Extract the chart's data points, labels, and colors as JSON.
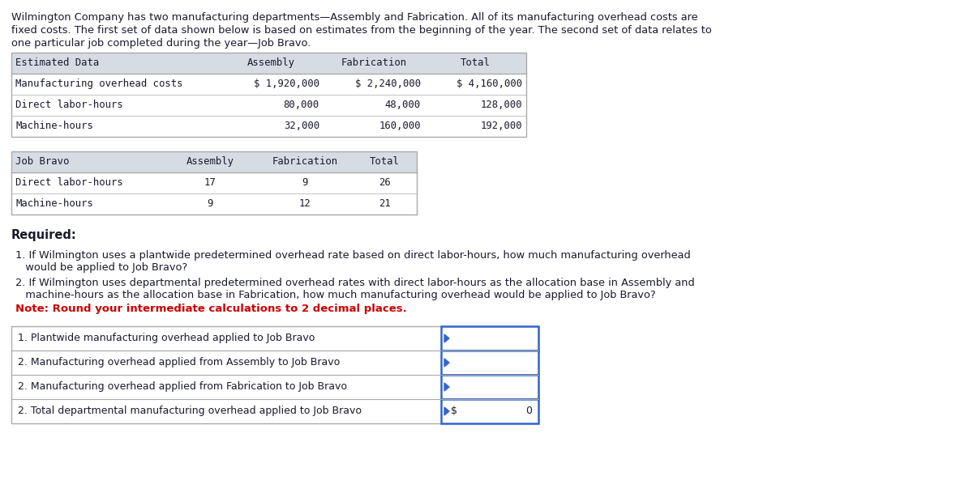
{
  "bg_color": "#ffffff",
  "intro_lines": [
    "Wilmington Company has two manufacturing departments—Assembly and Fabrication. All of its manufacturing overhead costs are",
    "fixed costs. The first set of data shown below is based on estimates from the beginning of the year. The second set of data relates to",
    "one particular job completed during the year—Job Bravo."
  ],
  "est_header": [
    "Estimated Data",
    "Assembly",
    "Fabrication",
    "Total"
  ],
  "est_rows": [
    [
      "Manufacturing overhead costs",
      "$ 1,920,000",
      "$ 2,240,000",
      "$ 4,160,000"
    ],
    [
      "Direct labor-hours",
      "80,000",
      "48,000",
      "128,000"
    ],
    [
      "Machine-hours",
      "32,000",
      "160,000",
      "192,000"
    ]
  ],
  "job_header": [
    "Job Bravo",
    "Assembly",
    "Fabrication",
    "Total"
  ],
  "job_rows": [
    [
      "Direct labor-hours",
      "17",
      "9",
      "26"
    ],
    [
      "Machine-hours",
      "9",
      "12",
      "21"
    ]
  ],
  "required_label": "Required:",
  "q1": "1. If Wilmington uses a plantwide predetermined overhead rate based on direct labor-hours, how much manufacturing overhead",
  "q1b": "   would be applied to Job Bravo?",
  "q2": "2. If Wilmington uses departmental predetermined overhead rates with direct labor-hours as the allocation base in Assembly and",
  "q2b": "   machine-hours as the allocation base in Fabrication, how much manufacturing overhead would be applied to Job Bravo?",
  "note_text": "Note: Round your intermediate calculations to 2 decimal places.",
  "ans_rows": [
    "1. Plantwide manufacturing overhead applied to Job Bravo",
    "2. Manufacturing overhead applied from Assembly to Job Bravo",
    "2. Manufacturing overhead applied from Fabrication to Job Bravo",
    "2. Total departmental manufacturing overhead applied to Job Bravo"
  ],
  "text_color": "#1a1a2e",
  "table_border_color": "#aaaaaa",
  "answer_border_color": "#3366cc",
  "note_color": "#cc0000",
  "header_bg": "#d6dce4",
  "mono_font": "DejaVu Sans Mono",
  "sans_font": "DejaVu Sans"
}
